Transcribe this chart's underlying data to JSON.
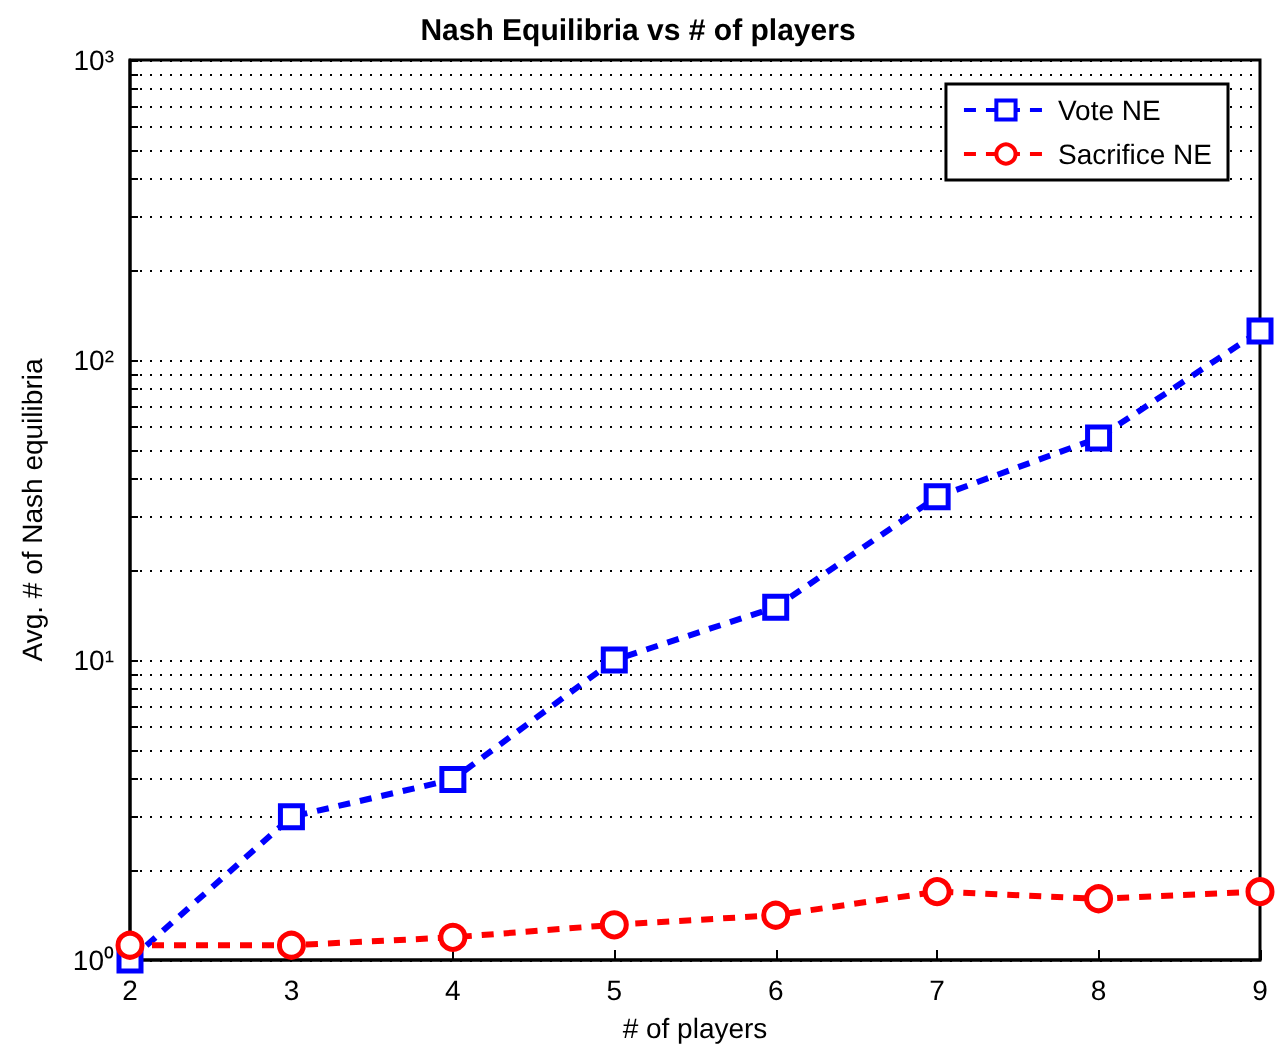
{
  "chart_data": {
    "type": "line",
    "title": "Nash Equilibria vs # of players",
    "xlabel": "# of players",
    "ylabel": "Avg. # of Nash equilibria",
    "x": [
      2,
      3,
      4,
      5,
      6,
      7,
      8,
      9
    ],
    "series": [
      {
        "name": "Vote NE",
        "color": "#0000ff",
        "marker": "square",
        "values": [
          1,
          3,
          4,
          10,
          15,
          35,
          55,
          125
        ]
      },
      {
        "name": "Sacrifice NE",
        "color": "#ff0000",
        "marker": "circle",
        "values": [
          1.12,
          1.12,
          1.19,
          1.31,
          1.41,
          1.69,
          1.6,
          1.69
        ]
      }
    ],
    "xlim": [
      2,
      9
    ],
    "xticks": [
      2,
      3,
      4,
      5,
      6,
      7,
      8,
      9
    ],
    "ylim": [
      1,
      1000
    ],
    "yticks": [
      {
        "value": 1,
        "label": "10⁰"
      },
      {
        "value": 10,
        "label": "10¹"
      },
      {
        "value": 100,
        "label": "10²"
      },
      {
        "value": 1000,
        "label": "10³"
      }
    ],
    "log": "y",
    "grid": "y",
    "legend": "top right",
    "line_style": "dashed"
  }
}
